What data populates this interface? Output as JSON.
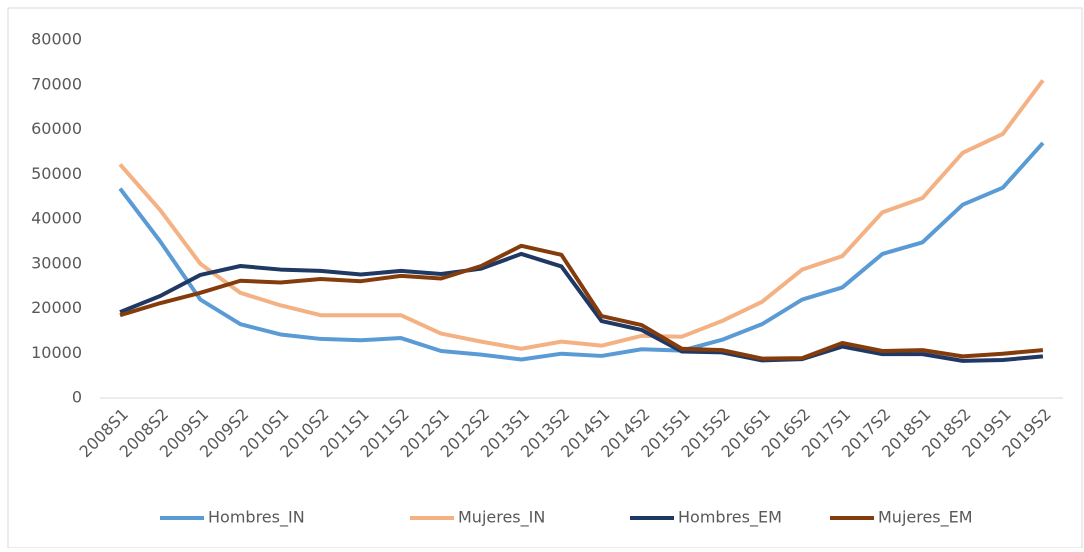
{
  "chart_data": {
    "type": "line",
    "categories": [
      "2008S1",
      "2008S2",
      "2009S1",
      "2009S2",
      "2010S1",
      "2010S2",
      "2011S1",
      "2011S2",
      "2012S1",
      "2012S2",
      "2013S1",
      "2013S2",
      "2014S1",
      "2014S2",
      "2015S1",
      "2015S2",
      "2016S1",
      "2016S2",
      "2017S1",
      "2017S2",
      "2018S1",
      "2018S2",
      "2019S1",
      "2019S2"
    ],
    "series": [
      {
        "name": "Hombres_IN",
        "color": "#5b9bd5",
        "values": [
          46800,
          35000,
          22000,
          16500,
          14200,
          13200,
          12900,
          13400,
          10500,
          9700,
          8600,
          9900,
          9400,
          10900,
          10600,
          13000,
          16500,
          22000,
          24700,
          32200,
          34800,
          43200,
          47000,
          57000
        ]
      },
      {
        "name": "Mujeres_IN",
        "color": "#f4b183",
        "values": [
          52200,
          42000,
          30000,
          23500,
          20700,
          18500,
          18500,
          18500,
          14400,
          12600,
          11000,
          12600,
          11700,
          13900,
          13700,
          17200,
          21500,
          28700,
          31700,
          41500,
          44700,
          54800,
          59000,
          71000
        ]
      },
      {
        "name": "Hombres_EM",
        "color": "#203864",
        "values": [
          19200,
          22800,
          27500,
          29500,
          28700,
          28400,
          27600,
          28400,
          27700,
          28900,
          32200,
          29400,
          17200,
          15200,
          10400,
          10200,
          8400,
          8700,
          11500,
          9800,
          9800,
          8300,
          8500,
          9300
        ]
      },
      {
        "name": "Mujeres_EM",
        "color": "#843c0c",
        "values": [
          18500,
          21200,
          23500,
          26200,
          25800,
          26600,
          26100,
          27300,
          26700,
          29500,
          34000,
          32000,
          18300,
          16300,
          11000,
          10700,
          8800,
          8900,
          12300,
          10500,
          10700,
          9300,
          9900,
          10700
        ]
      }
    ],
    "ylim": [
      0,
      80000
    ],
    "yticks": [
      0,
      10000,
      20000,
      30000,
      40000,
      50000,
      60000,
      70000,
      80000
    ],
    "grid": false,
    "legend": "bottom"
  }
}
